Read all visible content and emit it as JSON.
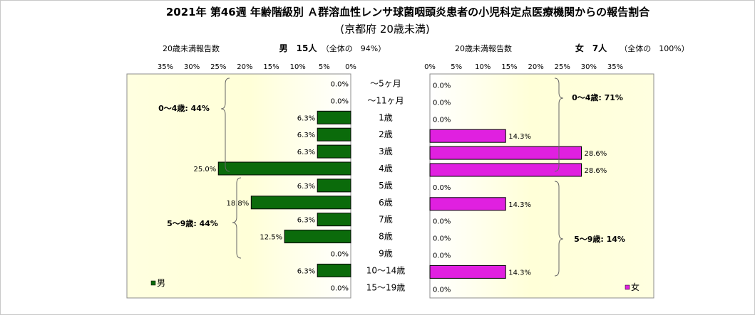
{
  "chart_data": {
    "type": "bar",
    "title": "2021年 第46週 年齢階級別 Ａ群溶血性レンサ球菌咽頭炎患者の小児科定点医療機関からの報告割合",
    "subtitle": "(京都府 20歳未満)",
    "categories": [
      "〜5ヶ月",
      "〜11ヶ月",
      "1歳",
      "2歳",
      "3歳",
      "4歳",
      "5歳",
      "6歳",
      "7歳",
      "8歳",
      "9歳",
      "10〜14歳",
      "15〜19歳"
    ],
    "xlim": [
      0,
      35
    ],
    "ticks": [
      "0%",
      "5%",
      "10%",
      "15%",
      "20%",
      "25%",
      "30%",
      "35%"
    ],
    "tick_values": [
      0,
      5,
      10,
      15,
      20,
      25,
      30,
      35
    ],
    "series": [
      {
        "name": "男",
        "header_left": "20歳未満報告数",
        "header_count": "男　15人",
        "header_share": "（全体の　94%）",
        "color": "#0b6b0b",
        "values": [
          0.0,
          0.0,
          6.3,
          6.3,
          6.3,
          25.0,
          6.3,
          18.8,
          6.3,
          12.5,
          0.0,
          6.3,
          0.0
        ],
        "labels": [
          "0.0%",
          "0.0%",
          "6.3%",
          "6.3%",
          "6.3%",
          "25.0%",
          "6.3%",
          "18.8%",
          "6.3%",
          "12.5%",
          "0.0%",
          "6.3%",
          "0.0%"
        ],
        "groups": [
          "0〜4歳: 44%",
          "5〜9歳: 44%"
        ]
      },
      {
        "name": "女",
        "header_left": "20歳未満報告数",
        "header_count": "女　7人",
        "header_share": "（全体の　100%）",
        "color": "#e020e0",
        "values": [
          0.0,
          0.0,
          0.0,
          14.3,
          28.6,
          28.6,
          0.0,
          14.3,
          0.0,
          0.0,
          0.0,
          14.3,
          0.0
        ],
        "labels": [
          "0.0%",
          "0.0%",
          "0.0%",
          "14.3%",
          "28.6%",
          "28.6%",
          "0.0%",
          "14.3%",
          "0.0%",
          "0.0%",
          "0.0%",
          "14.3%",
          "0.0%"
        ],
        "groups": [
          "0〜4歳: 71%",
          "5〜9歳: 14%"
        ]
      }
    ]
  }
}
